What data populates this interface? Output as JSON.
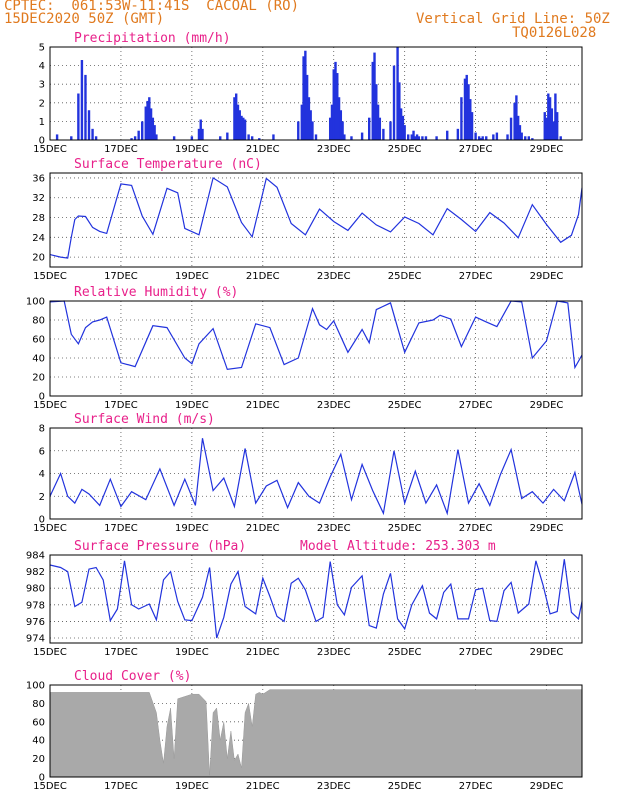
{
  "header": {
    "source": "CPTEC:  061:53W-11:41S  CACOAL (RO)",
    "date": "15DEC2020 50Z (GMT)",
    "grid": "Vertical Grid Line: 50Z",
    "code": "TQ0126L028"
  },
  "colors": {
    "line": "#2233dd",
    "bar": "#2233dd",
    "cloud": "#a9a9a9",
    "title": "#e8208a",
    "header": "#e07a1f"
  },
  "x_ticks": [
    "15DEC",
    "17DEC",
    "19DEC",
    "21DEC",
    "23DEC",
    "25DEC",
    "27DEC",
    "29DEC"
  ],
  "chart_data": [
    {
      "type": "bar",
      "title": "Precipitation (mm/h)",
      "ylim": [
        0,
        5
      ],
      "yticks": [
        0,
        1,
        2,
        3,
        4,
        5
      ],
      "grid": true,
      "x": [
        0.2,
        0.6,
        0.8,
        0.9,
        1.0,
        1.1,
        1.2,
        1.3,
        2.3,
        2.4,
        2.5,
        2.6,
        2.7,
        2.75,
        2.8,
        2.85,
        2.9,
        2.95,
        3.0,
        3.5,
        4.0,
        4.2,
        4.25,
        4.3,
        4.8,
        5.0,
        5.2,
        5.25,
        5.3,
        5.35,
        5.4,
        5.45,
        5.5,
        5.6,
        5.7,
        5.9,
        6.3,
        7.0,
        7.1,
        7.15,
        7.2,
        7.25,
        7.3,
        7.35,
        7.4,
        7.5,
        7.9,
        7.95,
        8.0,
        8.05,
        8.1,
        8.15,
        8.2,
        8.25,
        8.3,
        8.5,
        8.8,
        9.0,
        9.1,
        9.15,
        9.2,
        9.25,
        9.3,
        9.4,
        9.6,
        9.7,
        9.8,
        9.85,
        9.9,
        9.95,
        10.0,
        10.1,
        10.2,
        10.25,
        10.3,
        10.35,
        10.4,
        10.5,
        10.6,
        10.9,
        11.2,
        11.5,
        11.6,
        11.7,
        11.75,
        11.8,
        11.85,
        11.9,
        12.0,
        12.1,
        12.15,
        12.2,
        12.3,
        12.5,
        12.6,
        12.9,
        13.0,
        13.1,
        13.15,
        13.2,
        13.25,
        13.3,
        13.4,
        13.5,
        13.6,
        13.95,
        14.0,
        14.05,
        14.1,
        14.15,
        14.2,
        14.25,
        14.3,
        14.4
      ],
      "values": [
        0.3,
        0.2,
        2.5,
        4.3,
        3.5,
        1.6,
        0.6,
        0.2,
        0.1,
        0.2,
        0.5,
        1.0,
        1.8,
        2.1,
        2.3,
        1.7,
        1.2,
        0.8,
        0.3,
        0.2,
        0.2,
        0.6,
        1.1,
        0.6,
        0.2,
        0.4,
        2.3,
        2.5,
        1.9,
        1.6,
        1.3,
        1.2,
        1.1,
        0.3,
        0.2,
        0.1,
        0.3,
        1.0,
        1.9,
        4.5,
        4.8,
        3.5,
        2.3,
        1.6,
        1.0,
        0.3,
        1.2,
        1.9,
        3.8,
        4.2,
        3.6,
        2.3,
        1.6,
        1.0,
        0.3,
        0.2,
        0.4,
        1.2,
        4.2,
        4.7,
        3.0,
        1.9,
        1.2,
        0.6,
        1.0,
        4.0,
        5.0,
        3.1,
        1.7,
        1.3,
        0.8,
        0.3,
        0.3,
        0.5,
        0.2,
        0.3,
        0.2,
        0.2,
        0.2,
        0.2,
        0.5,
        0.6,
        2.3,
        3.3,
        3.5,
        3.0,
        2.2,
        1.5,
        0.4,
        0.2,
        0.1,
        0.2,
        0.2,
        0.3,
        0.4,
        0.3,
        1.2,
        2.0,
        2.4,
        1.3,
        0.8,
        0.4,
        0.2,
        0.2,
        0.1,
        1.5,
        1.2,
        2.5,
        2.3,
        1.7,
        1.0,
        2.5,
        1.5,
        0.2
      ]
    },
    {
      "type": "line",
      "title": "Surface Temperature (nC)",
      "ylim": [
        18,
        37
      ],
      "yticks": [
        20,
        24,
        28,
        32,
        36
      ],
      "grid": true,
      "series": [
        {
          "x": [
            0,
            0.3,
            0.5,
            0.6,
            0.7,
            0.8,
            1.0,
            1.2,
            1.4,
            1.6,
            2.0,
            2.3,
            2.6,
            2.9,
            3.3,
            3.6,
            3.8,
            4.2,
            4.6,
            5.0,
            5.4,
            5.7,
            6.1,
            6.4,
            6.8,
            7.2,
            7.6,
            8.0,
            8.4,
            8.8,
            9.2,
            9.6,
            10.0,
            10.4,
            10.8,
            11.2,
            11.6,
            12.0,
            12.4,
            12.8,
            13.2,
            13.6,
            14.0,
            14.4,
            14.7,
            14.9,
            15.0
          ],
          "values": [
            20.5,
            20.0,
            19.8,
            24.0,
            27.6,
            28.3,
            28.2,
            26.0,
            25.2,
            24.8,
            34.8,
            34.5,
            28.3,
            24.6,
            33.9,
            33.0,
            25.8,
            24.5,
            36.0,
            34.2,
            27.0,
            24.1,
            35.9,
            34.1,
            26.8,
            24.5,
            29.7,
            27.2,
            25.4,
            28.9,
            26.5,
            25.1,
            28.1,
            26.8,
            24.5,
            29.8,
            27.6,
            25.2,
            29.0,
            26.9,
            23.9,
            30.6,
            26.6,
            23.0,
            24.4,
            28.6,
            34.0
          ]
        }
      ]
    },
    {
      "type": "line",
      "title": "Relative Humidity (%)",
      "ylim": [
        0,
        100
      ],
      "yticks": [
        0,
        20,
        40,
        60,
        80,
        100
      ],
      "grid": true,
      "series": [
        {
          "x": [
            0,
            0.4,
            0.6,
            0.8,
            1.0,
            1.2,
            1.4,
            1.6,
            2.0,
            2.4,
            2.9,
            3.3,
            3.8,
            4.0,
            4.2,
            4.6,
            5.0,
            5.4,
            5.8,
            6.2,
            6.6,
            7.0,
            7.4,
            7.6,
            7.8,
            8.0,
            8.4,
            8.8,
            9.0,
            9.2,
            9.6,
            10.0,
            10.4,
            10.8,
            11.0,
            11.3,
            11.6,
            12.0,
            12.3,
            12.6,
            13.0,
            13.3,
            13.6,
            14.0,
            14.3,
            14.6,
            14.8,
            15.0
          ],
          "values": [
            99,
            100,
            65,
            55,
            72,
            78,
            80,
            83,
            35,
            31,
            74,
            72,
            40,
            34,
            55,
            71,
            28,
            30,
            76,
            72,
            33,
            40,
            92,
            75,
            70,
            79,
            46,
            70,
            56,
            91,
            98,
            46,
            77,
            80,
            85,
            81,
            52,
            83,
            78,
            73,
            100,
            99,
            40,
            58,
            100,
            98,
            30,
            43
          ]
        }
      ]
    },
    {
      "type": "line",
      "title": "Surface Wind (m/s)",
      "ylim": [
        0,
        8
      ],
      "yticks": [
        0,
        2,
        4,
        6,
        8
      ],
      "grid": true,
      "series": [
        {
          "x": [
            0,
            0.3,
            0.5,
            0.7,
            0.9,
            1.1,
            1.4,
            1.7,
            2.0,
            2.3,
            2.7,
            3.1,
            3.5,
            3.8,
            4.1,
            4.3,
            4.6,
            4.9,
            5.2,
            5.5,
            5.8,
            6.1,
            6.4,
            6.7,
            7.0,
            7.3,
            7.6,
            7.9,
            8.2,
            8.5,
            8.8,
            9.1,
            9.4,
            9.7,
            10.0,
            10.3,
            10.6,
            10.9,
            11.2,
            11.5,
            11.8,
            12.1,
            12.4,
            12.7,
            13.0,
            13.3,
            13.6,
            13.9,
            14.2,
            14.5,
            14.8,
            15.0
          ],
          "values": [
            2.0,
            4.0,
            2.0,
            1.4,
            2.6,
            2.2,
            1.2,
            3.5,
            1.1,
            2.4,
            1.7,
            4.4,
            1.2,
            3.5,
            1.2,
            7.1,
            2.5,
            3.6,
            1.1,
            6.2,
            1.4,
            2.9,
            3.4,
            1.0,
            3.2,
            2.0,
            1.4,
            3.7,
            5.7,
            1.7,
            4.8,
            2.5,
            0.5,
            6.0,
            1.4,
            4.2,
            1.4,
            3.0,
            0.5,
            6.1,
            1.4,
            3.1,
            1.2,
            3.9,
            6.1,
            1.8,
            2.4,
            1.4,
            2.6,
            1.6,
            4.1,
            1.3
          ]
        }
      ]
    },
    {
      "type": "line",
      "title": "Surface Pressure (hPa)",
      "subtitle": "Model Altitude: 253.303 m",
      "ylim": [
        973.4,
        984
      ],
      "yticks": [
        974,
        976,
        978,
        980,
        982,
        984
      ],
      "grid": true,
      "series": [
        {
          "x": [
            0,
            0.3,
            0.5,
            0.7,
            0.9,
            1.1,
            1.3,
            1.5,
            1.7,
            1.9,
            2.1,
            2.3,
            2.5,
            2.8,
            3.0,
            3.2,
            3.4,
            3.6,
            3.8,
            4.0,
            4.3,
            4.5,
            4.7,
            4.9,
            5.1,
            5.3,
            5.5,
            5.8,
            6.0,
            6.2,
            6.4,
            6.6,
            6.8,
            7.0,
            7.2,
            7.5,
            7.7,
            7.9,
            8.1,
            8.3,
            8.5,
            8.8,
            9.0,
            9.2,
            9.4,
            9.6,
            9.8,
            10.0,
            10.2,
            10.5,
            10.7,
            10.9,
            11.1,
            11.3,
            11.5,
            11.8,
            12.0,
            12.2,
            12.4,
            12.6,
            12.8,
            13.0,
            13.2,
            13.5,
            13.7,
            13.9,
            14.1,
            14.3,
            14.5,
            14.7,
            14.9,
            15.0
          ],
          "values": [
            982.8,
            982.5,
            982.0,
            977.8,
            978.3,
            982.3,
            982.5,
            981.0,
            976.1,
            977.5,
            983.3,
            978.0,
            977.5,
            978.1,
            976.2,
            981.0,
            982.0,
            978.4,
            976.2,
            976.1,
            978.9,
            982.5,
            974.0,
            976.5,
            980.5,
            982.0,
            977.8,
            976.9,
            981.2,
            979.0,
            976.6,
            976.0,
            980.6,
            981.2,
            979.8,
            976.0,
            976.5,
            983.2,
            978.0,
            976.8,
            980.1,
            981.5,
            975.5,
            975.2,
            979.3,
            981.8,
            976.3,
            975.1,
            978.0,
            980.3,
            977.0,
            976.3,
            979.5,
            980.5,
            976.3,
            976.3,
            979.8,
            980.0,
            976.1,
            976.0,
            979.7,
            980.7,
            977.0,
            978.1,
            983.3,
            980.4,
            976.9,
            977.2,
            983.5,
            977.1,
            976.3,
            978.4
          ]
        }
      ]
    },
    {
      "type": "area",
      "title": "Cloud Cover (%)",
      "ylim": [
        0,
        100
      ],
      "yticks": [
        0,
        20,
        40,
        60,
        80,
        100
      ],
      "grid": true,
      "series": [
        {
          "x": [
            0,
            2.8,
            3.0,
            3.1,
            3.2,
            3.3,
            3.4,
            3.5,
            3.6,
            4.0,
            4.2,
            4.4,
            4.5,
            4.6,
            4.7,
            4.8,
            4.9,
            5.0,
            5.1,
            5.2,
            5.3,
            5.4,
            5.5,
            5.6,
            5.7,
            5.8,
            5.9,
            6.0,
            6.2,
            15.0
          ],
          "values": [
            92,
            92,
            70,
            40,
            15,
            55,
            75,
            20,
            85,
            90,
            90,
            82,
            2,
            70,
            75,
            40,
            60,
            20,
            50,
            18,
            25,
            10,
            70,
            80,
            55,
            90,
            92,
            90,
            95,
            95
          ]
        }
      ]
    }
  ]
}
